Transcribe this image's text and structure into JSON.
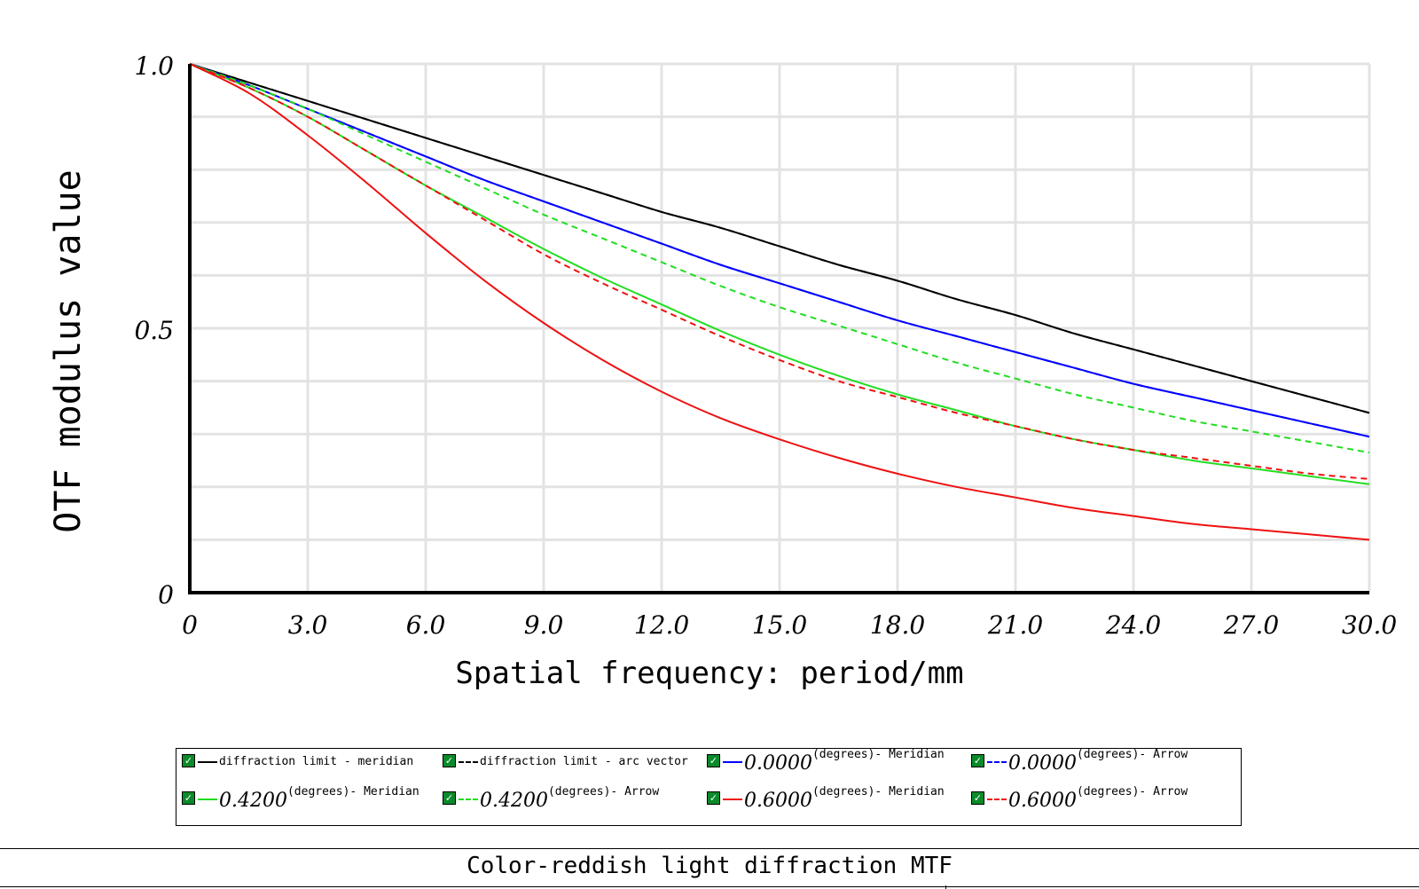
{
  "chart_data": {
    "type": "line",
    "title": "Color-reddish light diffraction MTF",
    "xlabel": "Spatial frequency: period/mm",
    "ylabel": "OTF modulus value",
    "xlim": [
      0,
      30
    ],
    "ylim": [
      0,
      1
    ],
    "x_ticks": [
      "0",
      "3.0",
      "6.0",
      "9.0",
      "12.0",
      "15.0",
      "18.0",
      "21.0",
      "24.0",
      "27.0",
      "30.0"
    ],
    "y_ticks": [
      "0",
      "0.5",
      "1.0"
    ],
    "grid": true,
    "legend_position": "bottom",
    "x": [
      0,
      1.5,
      3,
      4.5,
      6,
      7.5,
      9,
      10.5,
      12,
      13.5,
      15,
      16.5,
      18,
      19.5,
      21,
      22.5,
      24,
      25.5,
      27,
      28.5,
      30
    ],
    "series": [
      {
        "number": "",
        "name": "diffraction limit - meridian",
        "color": "#000000",
        "style": "solid",
        "values": [
          1.0,
          0.965,
          0.93,
          0.895,
          0.86,
          0.825,
          0.79,
          0.755,
          0.72,
          0.69,
          0.655,
          0.62,
          0.59,
          0.555,
          0.525,
          0.49,
          0.46,
          0.43,
          0.4,
          0.37,
          0.34
        ]
      },
      {
        "number": "",
        "name": "diffraction limit - arc vector",
        "color": "#000000",
        "style": "dashed",
        "values": [
          1.0,
          0.965,
          0.93,
          0.895,
          0.86,
          0.825,
          0.79,
          0.755,
          0.72,
          0.69,
          0.655,
          0.62,
          0.59,
          0.555,
          0.525,
          0.49,
          0.46,
          0.43,
          0.4,
          0.37,
          0.34
        ]
      },
      {
        "number": "0.0000",
        "name": "(degrees)- Meridian",
        "color": "#0000ff",
        "style": "solid",
        "values": [
          1.0,
          0.96,
          0.915,
          0.87,
          0.825,
          0.78,
          0.74,
          0.7,
          0.66,
          0.62,
          0.585,
          0.55,
          0.515,
          0.485,
          0.455,
          0.425,
          0.395,
          0.37,
          0.345,
          0.32,
          0.295
        ]
      },
      {
        "number": "0.0000",
        "name": "(degrees)- Arrow",
        "color": "#0000ff",
        "style": "dashed",
        "values": [
          1.0,
          0.96,
          0.915,
          0.87,
          0.825,
          0.78,
          0.74,
          0.7,
          0.66,
          0.62,
          0.585,
          0.55,
          0.515,
          0.485,
          0.455,
          0.425,
          0.395,
          0.37,
          0.345,
          0.32,
          0.295
        ]
      },
      {
        "number": "0.4200",
        "name": "(degrees)- Meridian",
        "color": "#22dd22",
        "style": "solid",
        "values": [
          1.0,
          0.955,
          0.9,
          0.835,
          0.77,
          0.71,
          0.65,
          0.595,
          0.545,
          0.495,
          0.45,
          0.41,
          0.375,
          0.345,
          0.315,
          0.29,
          0.27,
          0.25,
          0.235,
          0.22,
          0.205
        ]
      },
      {
        "number": "0.4200",
        "name": "(degrees)- Arrow",
        "color": "#22dd22",
        "style": "dashed",
        "values": [
          1.0,
          0.96,
          0.915,
          0.865,
          0.815,
          0.765,
          0.715,
          0.67,
          0.625,
          0.58,
          0.54,
          0.505,
          0.47,
          0.435,
          0.405,
          0.375,
          0.35,
          0.325,
          0.305,
          0.285,
          0.265
        ]
      },
      {
        "number": "0.6000",
        "name": "(degrees)- Meridian",
        "color": "#ee1111",
        "style": "solid",
        "values": [
          1.0,
          0.945,
          0.865,
          0.775,
          0.68,
          0.59,
          0.51,
          0.44,
          0.38,
          0.33,
          0.29,
          0.255,
          0.225,
          0.2,
          0.18,
          0.16,
          0.145,
          0.13,
          0.12,
          0.11,
          0.1
        ]
      },
      {
        "number": "0.6000",
        "name": "(degrees)- Arrow",
        "color": "#ee1111",
        "style": "dashed",
        "values": [
          1.0,
          0.955,
          0.9,
          0.835,
          0.77,
          0.705,
          0.64,
          0.585,
          0.535,
          0.485,
          0.44,
          0.4,
          0.37,
          0.34,
          0.315,
          0.29,
          0.27,
          0.255,
          0.24,
          0.225,
          0.215
        ]
      }
    ]
  }
}
